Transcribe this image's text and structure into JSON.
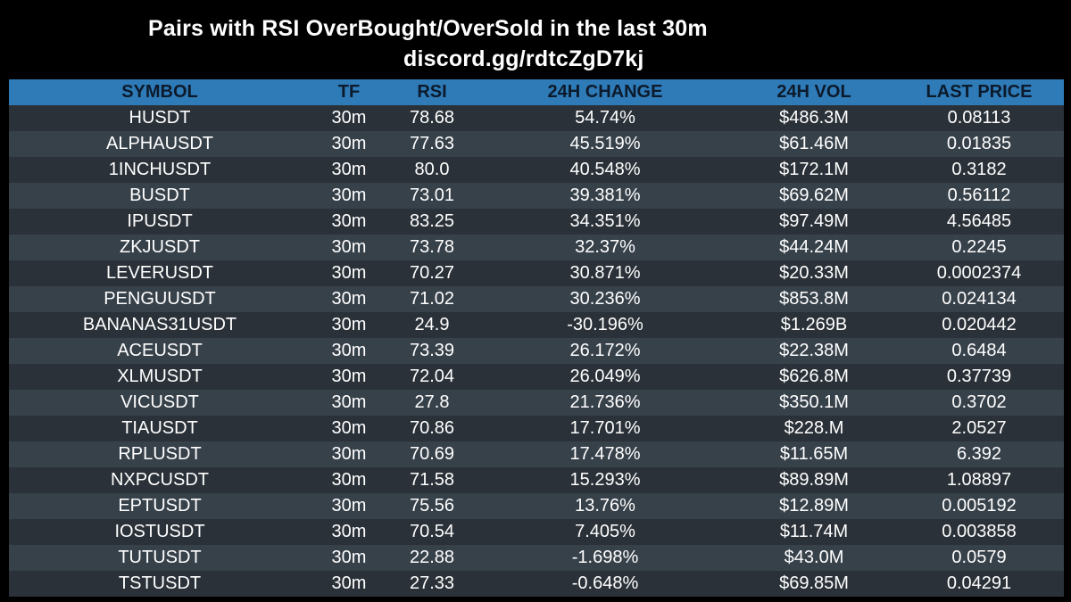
{
  "header": {
    "title": "Pairs with RSI OverBought/OverSold in the last 30m",
    "subtitle": "discord.gg/rdtcZgD7kj"
  },
  "colors": {
    "background": "#000000",
    "header_row": "#2e7bb8",
    "row_dark": "#2a3138",
    "row_light": "#37414a",
    "text": "#ffffff"
  },
  "chart_data": {
    "type": "table",
    "columns": [
      "SYMBOL",
      "TF",
      "RSI",
      "24H CHANGE",
      "24H VOL",
      "LAST PRICE"
    ],
    "rows": [
      [
        "HUSDT",
        "30m",
        "78.68",
        "54.74%",
        "$486.3M",
        "0.08113"
      ],
      [
        "ALPHAUSDT",
        "30m",
        "77.63",
        "45.519%",
        "$61.46M",
        "0.01835"
      ],
      [
        "1INCHUSDT",
        "30m",
        "80.0",
        "40.548%",
        "$172.1M",
        "0.3182"
      ],
      [
        "BUSDT",
        "30m",
        "73.01",
        "39.381%",
        "$69.62M",
        "0.56112"
      ],
      [
        "IPUSDT",
        "30m",
        "83.25",
        "34.351%",
        "$97.49M",
        "4.56485"
      ],
      [
        "ZKJUSDT",
        "30m",
        "73.78",
        "32.37%",
        "$44.24M",
        "0.2245"
      ],
      [
        "LEVERUSDT",
        "30m",
        "70.27",
        "30.871%",
        "$20.33M",
        "0.0002374"
      ],
      [
        "PENGUUSDT",
        "30m",
        "71.02",
        "30.236%",
        "$853.8M",
        "0.024134"
      ],
      [
        "BANANAS31USDT",
        "30m",
        "24.9",
        "-30.196%",
        "$1.269B",
        "0.020442"
      ],
      [
        "ACEUSDT",
        "30m",
        "73.39",
        "26.172%",
        "$22.38M",
        "0.6484"
      ],
      [
        "XLMUSDT",
        "30m",
        "72.04",
        "26.049%",
        "$626.8M",
        "0.37739"
      ],
      [
        "VICUSDT",
        "30m",
        "27.8",
        "21.736%",
        "$350.1M",
        "0.3702"
      ],
      [
        "TIAUSDT",
        "30m",
        "70.86",
        "17.701%",
        "$228.M",
        "2.0527"
      ],
      [
        "RPLUSDT",
        "30m",
        "70.69",
        "17.478%",
        "$11.65M",
        "6.392"
      ],
      [
        "NXPCUSDT",
        "30m",
        "71.58",
        "15.293%",
        "$89.89M",
        "1.08897"
      ],
      [
        "EPTUSDT",
        "30m",
        "75.56",
        "13.76%",
        "$12.89M",
        "0.005192"
      ],
      [
        "IOSTUSDT",
        "30m",
        "70.54",
        "7.405%",
        "$11.74M",
        "0.003858"
      ],
      [
        "TUTUSDT",
        "30m",
        "22.88",
        "-1.698%",
        "$43.0M",
        "0.0579"
      ],
      [
        "TSTUSDT",
        "30m",
        "27.33",
        "-0.648%",
        "$69.85M",
        "0.04291"
      ]
    ]
  }
}
